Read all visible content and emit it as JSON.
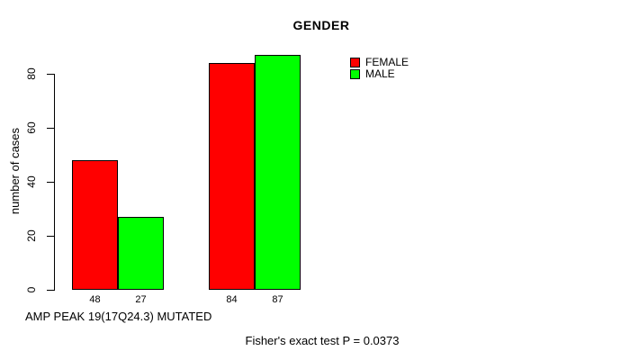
{
  "chart_data": {
    "type": "bar",
    "title": "GENDER",
    "ylabel": "number of cases",
    "xlabel": "AMP PEAK 19(17Q24.3) MUTATED",
    "annotation": "Fisher's exact test P = 0.0373",
    "yticks": [
      0,
      20,
      40,
      60,
      80
    ],
    "ylim": [
      0,
      88
    ],
    "num_groups": 2,
    "series": [
      {
        "name": "FEMALE",
        "color": "#ff0000",
        "values": [
          48,
          84
        ]
      },
      {
        "name": "MALE",
        "color": "#00ff00",
        "values": [
          27,
          87
        ]
      }
    ],
    "value_labels_shown": true,
    "legend_position": "top-right",
    "grid": false,
    "colors": {
      "background": "#ffffff",
      "text": "#000000",
      "axis": "#000000",
      "female": "#ff0000",
      "male": "#00ff00"
    }
  }
}
